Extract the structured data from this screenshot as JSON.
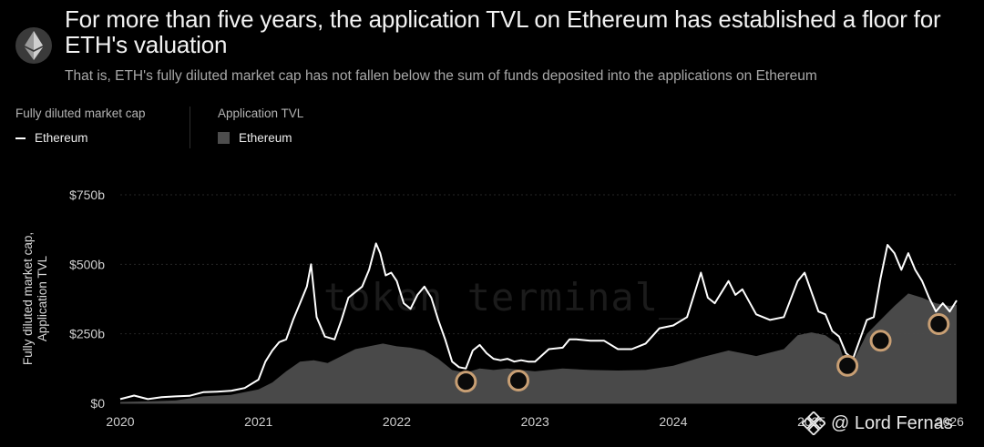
{
  "header": {
    "title": "For more than five years, the application TVL on Ethereum has established a floor for ETH's valuation",
    "subtitle": "That is, ETH's fully diluted market cap has not fallen below the sum of funds deposited into the applications on Ethereum",
    "logo_icon": "ethereum-diamond-icon"
  },
  "legend": {
    "groups": [
      {
        "heading": "Fully diluted market cap",
        "item": "Ethereum",
        "swatch": "line",
        "color": "#ffffff"
      },
      {
        "heading": "Application TVL",
        "item": "Ethereum",
        "swatch": "area",
        "color": "#4d4d4d"
      }
    ]
  },
  "watermark": "token terminal_",
  "credit": {
    "text": "@ Lord Fernas",
    "icon": "binance-square-icon"
  },
  "chart_data": {
    "type": "line",
    "ylabel": "Fully diluted market cap,\nApplication TVL",
    "yticks": [
      {
        "value": 0,
        "label": "$0"
      },
      {
        "value": 250,
        "label": "$250b"
      },
      {
        "value": 500,
        "label": "$500b"
      },
      {
        "value": 750,
        "label": "$750b"
      }
    ],
    "xticks": [
      {
        "value": 2020,
        "label": "2020"
      },
      {
        "value": 2021,
        "label": "2021"
      },
      {
        "value": 2022,
        "label": "2022"
      },
      {
        "value": 2023,
        "label": "2023"
      },
      {
        "value": 2024,
        "label": "2024"
      },
      {
        "value": 2025,
        "label": "2025"
      },
      {
        "value": 2026,
        "label": "2026"
      }
    ],
    "xlim": [
      2020.0,
      2026.05
    ],
    "ylim": [
      0,
      750
    ],
    "grid": "horizontal",
    "series": [
      {
        "name": "Fully diluted market cap — Ethereum",
        "kind": "line",
        "color": "#ffffff",
        "points": [
          [
            2020.0,
            15
          ],
          [
            2020.1,
            28
          ],
          [
            2020.2,
            15
          ],
          [
            2020.3,
            22
          ],
          [
            2020.4,
            25
          ],
          [
            2020.5,
            27
          ],
          [
            2020.6,
            40
          ],
          [
            2020.7,
            42
          ],
          [
            2020.8,
            45
          ],
          [
            2020.9,
            55
          ],
          [
            2021.0,
            85
          ],
          [
            2021.05,
            150
          ],
          [
            2021.1,
            190
          ],
          [
            2021.15,
            220
          ],
          [
            2021.2,
            230
          ],
          [
            2021.25,
            300
          ],
          [
            2021.3,
            360
          ],
          [
            2021.35,
            420
          ],
          [
            2021.38,
            500
          ],
          [
            2021.42,
            310
          ],
          [
            2021.48,
            240
          ],
          [
            2021.55,
            230
          ],
          [
            2021.6,
            300
          ],
          [
            2021.65,
            380
          ],
          [
            2021.7,
            400
          ],
          [
            2021.75,
            420
          ],
          [
            2021.8,
            480
          ],
          [
            2021.85,
            575
          ],
          [
            2021.88,
            540
          ],
          [
            2021.92,
            460
          ],
          [
            2021.96,
            470
          ],
          [
            2022.0,
            440
          ],
          [
            2022.05,
            360
          ],
          [
            2022.1,
            340
          ],
          [
            2022.15,
            390
          ],
          [
            2022.2,
            420
          ],
          [
            2022.25,
            380
          ],
          [
            2022.3,
            300
          ],
          [
            2022.35,
            230
          ],
          [
            2022.4,
            150
          ],
          [
            2022.45,
            130
          ],
          [
            2022.5,
            125
          ],
          [
            2022.55,
            190
          ],
          [
            2022.6,
            210
          ],
          [
            2022.65,
            180
          ],
          [
            2022.7,
            160
          ],
          [
            2022.75,
            155
          ],
          [
            2022.8,
            160
          ],
          [
            2022.85,
            150
          ],
          [
            2022.9,
            155
          ],
          [
            2022.95,
            150
          ],
          [
            2023.0,
            150
          ],
          [
            2023.1,
            195
          ],
          [
            2023.2,
            200
          ],
          [
            2023.25,
            230
          ],
          [
            2023.3,
            230
          ],
          [
            2023.4,
            225
          ],
          [
            2023.5,
            225
          ],
          [
            2023.6,
            195
          ],
          [
            2023.7,
            195
          ],
          [
            2023.8,
            215
          ],
          [
            2023.9,
            270
          ],
          [
            2024.0,
            280
          ],
          [
            2024.1,
            310
          ],
          [
            2024.2,
            470
          ],
          [
            2024.25,
            380
          ],
          [
            2024.3,
            360
          ],
          [
            2024.4,
            440
          ],
          [
            2024.45,
            390
          ],
          [
            2024.5,
            410
          ],
          [
            2024.6,
            320
          ],
          [
            2024.7,
            300
          ],
          [
            2024.8,
            310
          ],
          [
            2024.9,
            440
          ],
          [
            2024.95,
            470
          ],
          [
            2025.0,
            400
          ],
          [
            2025.05,
            330
          ],
          [
            2025.1,
            320
          ],
          [
            2025.15,
            260
          ],
          [
            2025.2,
            240
          ],
          [
            2025.25,
            180
          ],
          [
            2025.3,
            160
          ],
          [
            2025.35,
            230
          ],
          [
            2025.4,
            300
          ],
          [
            2025.45,
            310
          ],
          [
            2025.5,
            450
          ],
          [
            2025.55,
            570
          ],
          [
            2025.6,
            540
          ],
          [
            2025.65,
            480
          ],
          [
            2025.7,
            540
          ],
          [
            2025.75,
            480
          ],
          [
            2025.8,
            440
          ],
          [
            2025.85,
            380
          ],
          [
            2025.9,
            330
          ],
          [
            2025.95,
            360
          ],
          [
            2026.0,
            330
          ],
          [
            2026.05,
            370
          ]
        ]
      },
      {
        "name": "Application TVL — Ethereum",
        "kind": "area",
        "color": "#4d4d4d",
        "points": [
          [
            2020.0,
            5
          ],
          [
            2020.2,
            7
          ],
          [
            2020.4,
            10
          ],
          [
            2020.6,
            25
          ],
          [
            2020.8,
            30
          ],
          [
            2021.0,
            50
          ],
          [
            2021.1,
            75
          ],
          [
            2021.2,
            115
          ],
          [
            2021.3,
            150
          ],
          [
            2021.4,
            155
          ],
          [
            2021.5,
            145
          ],
          [
            2021.6,
            170
          ],
          [
            2021.7,
            195
          ],
          [
            2021.8,
            205
          ],
          [
            2021.9,
            215
          ],
          [
            2022.0,
            205
          ],
          [
            2022.1,
            200
          ],
          [
            2022.2,
            190
          ],
          [
            2022.3,
            160
          ],
          [
            2022.4,
            120
          ],
          [
            2022.5,
            110
          ],
          [
            2022.6,
            125
          ],
          [
            2022.7,
            120
          ],
          [
            2022.8,
            125
          ],
          [
            2022.9,
            120
          ],
          [
            2023.0,
            115
          ],
          [
            2023.2,
            125
          ],
          [
            2023.4,
            120
          ],
          [
            2023.6,
            118
          ],
          [
            2023.8,
            120
          ],
          [
            2024.0,
            135
          ],
          [
            2024.2,
            165
          ],
          [
            2024.4,
            190
          ],
          [
            2024.5,
            180
          ],
          [
            2024.6,
            170
          ],
          [
            2024.8,
            195
          ],
          [
            2024.9,
            245
          ],
          [
            2025.0,
            255
          ],
          [
            2025.1,
            245
          ],
          [
            2025.2,
            210
          ],
          [
            2025.25,
            135
          ],
          [
            2025.3,
            150
          ],
          [
            2025.4,
            250
          ],
          [
            2025.5,
            300
          ],
          [
            2025.6,
            350
          ],
          [
            2025.7,
            395
          ],
          [
            2025.8,
            380
          ],
          [
            2025.9,
            360
          ],
          [
            2026.0,
            350
          ],
          [
            2026.05,
            355
          ]
        ]
      }
    ],
    "annotations": {
      "kind": "circle-markers",
      "color": "#c89f74",
      "points": [
        [
          2022.5,
          78
        ],
        [
          2022.88,
          82
        ],
        [
          2025.26,
          135
        ],
        [
          2025.5,
          225
        ],
        [
          2025.92,
          285
        ]
      ]
    }
  }
}
